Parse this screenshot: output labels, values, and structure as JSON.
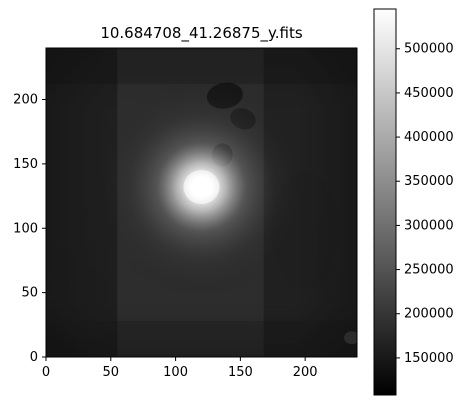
{
  "chart_data": {
    "type": "heatmap",
    "title": "10.684708_41.26875_y.fits",
    "xlabel": "",
    "ylabel": "",
    "xlim": [
      0,
      240
    ],
    "ylim": [
      0,
      240
    ],
    "x_ticks": [
      0,
      50,
      100,
      150,
      200
    ],
    "y_ticks": [
      0,
      50,
      100,
      150,
      200
    ],
    "colormap": "gray",
    "colorbar": {
      "vmin": 108000,
      "vmax": 545000,
      "ticks": [
        150000,
        200000,
        250000,
        300000,
        350000,
        400000,
        450000,
        500000
      ],
      "tick_labels": [
        "150000",
        "200000",
        "250000",
        "300000",
        "350000",
        "400000",
        "450000",
        "500000"
      ]
    },
    "image_features": {
      "background_level": 140000,
      "bright_source_center": [
        120,
        132
      ],
      "bright_source_peak": 545000,
      "grid": false
    }
  }
}
